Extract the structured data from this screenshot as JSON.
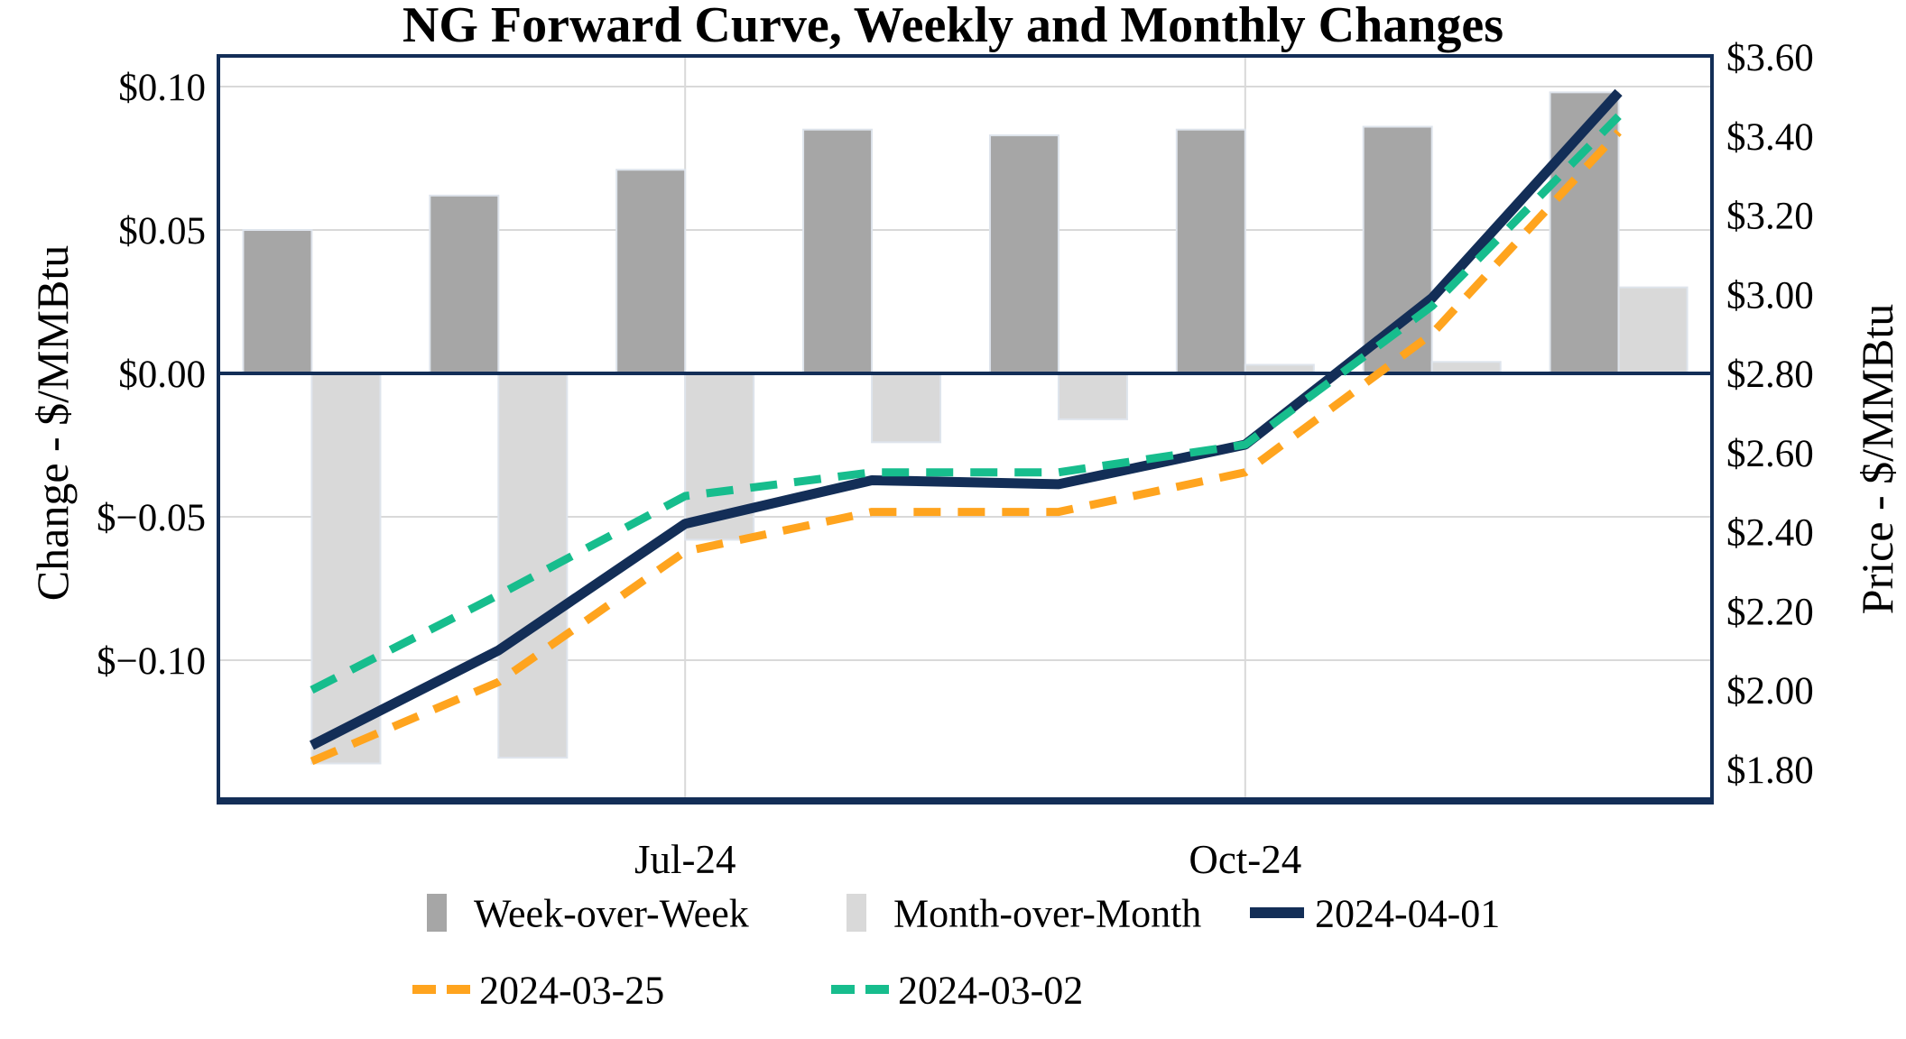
{
  "title": "NG Forward Curve, Weekly and Monthly Changes",
  "chart_data": {
    "type": "combo-bar-line",
    "n_categories": 8,
    "x_tick_labels": [
      {
        "label": "Jul-24",
        "category_index": 2
      },
      {
        "label": "Oct-24",
        "category_index": 5
      }
    ],
    "left_axis": {
      "label": "Change - $/MMBtu",
      "tick_labels": [
        "$0.10",
        "$0.05",
        "$0.00",
        "$−0.05",
        "$−0.10"
      ],
      "tick_values": [
        0.1,
        0.05,
        0.0,
        -0.05,
        -0.1
      ],
      "range": [
        -0.149,
        0.111
      ],
      "grid": true
    },
    "right_axis": {
      "label": "Price - $/MMBtu",
      "tick_labels": [
        "$3.60",
        "$3.40",
        "$3.20",
        "$3.00",
        "$2.80",
        "$2.60",
        "$2.40",
        "$2.20",
        "$2.00",
        "$1.80"
      ],
      "tick_values": [
        3.6,
        3.4,
        3.2,
        3.0,
        2.8,
        2.6,
        2.4,
        2.2,
        2.0,
        1.8
      ],
      "range": [
        1.72,
        3.6
      ],
      "grid": false
    },
    "bar_series": [
      {
        "name": "Week-over-Week",
        "axis": "left",
        "color": "#A6A6A6",
        "values": [
          0.05,
          0.062,
          0.071,
          0.085,
          0.083,
          0.085,
          0.086,
          0.098
        ]
      },
      {
        "name": "Month-over-Month",
        "axis": "left",
        "color": "#D9D9D9",
        "values": [
          -0.136,
          -0.134,
          -0.058,
          -0.024,
          -0.016,
          0.003,
          0.004,
          0.03
        ]
      }
    ],
    "line_series": [
      {
        "name": "2024-04-01",
        "axis": "right",
        "color": "#132E57",
        "style": "solid",
        "values": [
          1.86,
          2.1,
          2.42,
          2.53,
          2.52,
          2.62,
          2.99,
          3.51
        ]
      },
      {
        "name": "2024-03-25",
        "axis": "right",
        "color": "#FFA41E",
        "style": "dashed",
        "values": [
          1.82,
          2.02,
          2.35,
          2.45,
          2.45,
          2.55,
          2.9,
          3.41
        ]
      },
      {
        "name": "2024-03-02",
        "axis": "right",
        "color": "#17BD8D",
        "style": "dashed",
        "values": [
          2.0,
          2.24,
          2.49,
          2.55,
          2.55,
          2.62,
          2.97,
          3.45
        ]
      }
    ],
    "legend": {
      "position": "bottom",
      "rows": [
        [
          {
            "series": "Week-over-Week",
            "marker": "bar"
          },
          {
            "series": "Month-over-Month",
            "marker": "bar"
          },
          {
            "series": "2024-04-01",
            "marker": "solid-line"
          }
        ],
        [
          {
            "series": "2024-03-25",
            "marker": "dashed-line"
          },
          {
            "series": "2024-03-02",
            "marker": "dashed-line"
          }
        ]
      ]
    }
  },
  "colors": {
    "frame": "#132E57",
    "zero_line": "#132E57",
    "gridline": "#D9D9D9",
    "bar_edge": "#DEE4EC",
    "text": "#000000",
    "background": "#FFFFFF"
  }
}
